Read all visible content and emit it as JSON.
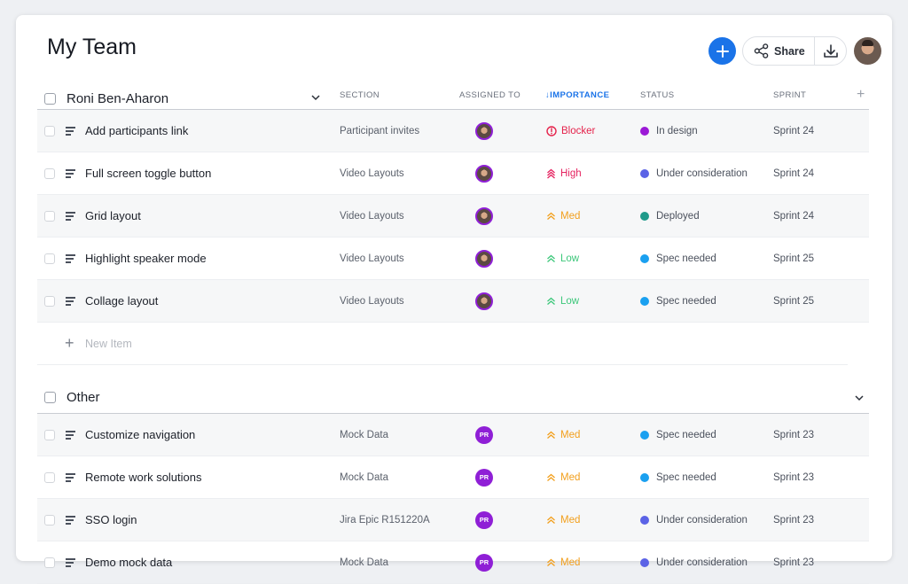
{
  "header": {
    "title": "My Team",
    "share_label": "Share"
  },
  "columns": {
    "section": "SECTION",
    "assigned": "ASSIGNED TO",
    "importance": "IMPORTANCE",
    "status": "STATUS",
    "sprint": "SPRINT"
  },
  "colors": {
    "accent": "#1a73e8",
    "avatar_purple": "#8f1fd6",
    "blocker": "#e5224b",
    "high": "#e5225f",
    "med": "#f29f1c",
    "low": "#3cc77a",
    "in_design": "#9b19d6",
    "under_consideration": "#5b63e6",
    "deployed": "#1f9a8a",
    "spec_needed": "#1aa0f0"
  },
  "groups": [
    {
      "name": "Roni Ben-Aharon",
      "rows": [
        {
          "name": "Add participants link",
          "section": "Participant invites",
          "assignee": "photo",
          "importance": "Blocker",
          "importance_icon": "blocker-icon",
          "status": "In design",
          "status_color": "#9b19d6",
          "sprint": "Sprint 24"
        },
        {
          "name": "Full screen toggle button",
          "section": "Video Layouts",
          "assignee": "photo",
          "importance": "High",
          "importance_icon": "high-icon",
          "status": "Under consideration",
          "status_color": "#5b63e6",
          "sprint": "Sprint 24"
        },
        {
          "name": "Grid layout",
          "section": "Video Layouts",
          "assignee": "photo",
          "importance": "Med",
          "importance_icon": "med-icon",
          "status": "Deployed",
          "status_color": "#1f9a8a",
          "sprint": "Sprint 24"
        },
        {
          "name": "Highlight speaker mode",
          "section": "Video Layouts",
          "assignee": "photo",
          "importance": "Low",
          "importance_icon": "low-icon",
          "status": "Spec needed",
          "status_color": "#1aa0f0",
          "sprint": "Sprint 25"
        },
        {
          "name": "Collage layout",
          "section": "Video Layouts",
          "assignee": "photo",
          "importance": "Low",
          "importance_icon": "low-icon",
          "status": "Spec needed",
          "status_color": "#1aa0f0",
          "sprint": "Sprint 25"
        }
      ],
      "new_item_label": "New Item"
    },
    {
      "name": "Other",
      "rows": [
        {
          "name": "Customize navigation",
          "section": "Mock Data",
          "assignee": "PR",
          "importance": "Med",
          "importance_icon": "med-icon",
          "status": "Spec needed",
          "status_color": "#1aa0f0",
          "sprint": "Sprint 23"
        },
        {
          "name": "Remote work solutions",
          "section": "Mock Data",
          "assignee": "PR",
          "importance": "Med",
          "importance_icon": "med-icon",
          "status": "Spec needed",
          "status_color": "#1aa0f0",
          "sprint": "Sprint 23"
        },
        {
          "name": "SSO login",
          "section": "Jira Epic R151220A",
          "assignee": "PR",
          "importance": "Med",
          "importance_icon": "med-icon",
          "status": "Under consideration",
          "status_color": "#5b63e6",
          "sprint": "Sprint 23"
        },
        {
          "name": "Demo mock data",
          "section": "Mock Data",
          "assignee": "PR",
          "importance": "Med",
          "importance_icon": "med-icon",
          "status": "Under consideration",
          "status_color": "#5b63e6",
          "sprint": "Sprint 23"
        }
      ]
    }
  ]
}
